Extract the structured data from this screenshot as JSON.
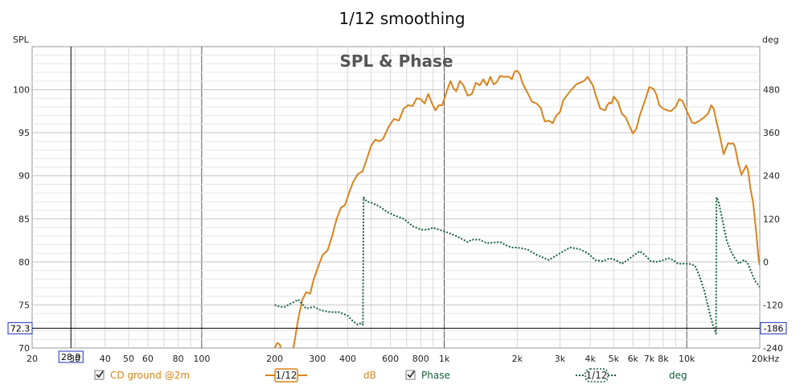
{
  "chart_data": {
    "type": "line",
    "title": "1/12 smoothing",
    "subtitle": "SPL & Phase",
    "ylabel": "SPL",
    "y2label": "deg",
    "xscale": "log",
    "xlim": [
      20,
      20000
    ],
    "ylim": [
      70,
      105
    ],
    "y2lim": [
      -240,
      600
    ],
    "grid": true,
    "x_ticks": [
      {
        "v": 20,
        "label": "20"
      },
      {
        "v": 30,
        "label": "30"
      },
      {
        "v": 40,
        "label": "40"
      },
      {
        "v": 50,
        "label": "50"
      },
      {
        "v": 60,
        "label": "60"
      },
      {
        "v": 80,
        "label": "80"
      },
      {
        "v": 100,
        "label": "100"
      },
      {
        "v": 200,
        "label": "200"
      },
      {
        "v": 300,
        "label": "300"
      },
      {
        "v": 400,
        "label": "400"
      },
      {
        "v": 600,
        "label": "600"
      },
      {
        "v": 800,
        "label": "800"
      },
      {
        "v": 1000,
        "label": "1k"
      },
      {
        "v": 2000,
        "label": "2k"
      },
      {
        "v": 3000,
        "label": "3k"
      },
      {
        "v": 4000,
        "label": "4k"
      },
      {
        "v": 5000,
        "label": "5k"
      },
      {
        "v": 6000,
        "label": "6k"
      },
      {
        "v": 7000,
        "label": "7k"
      },
      {
        "v": 8000,
        "label": "8k"
      },
      {
        "v": 10000,
        "label": "10k"
      },
      {
        "v": 20000,
        "label": "20kHz"
      }
    ],
    "y_ticks": [
      {
        "v": 70,
        "label": "70"
      },
      {
        "v": 75,
        "label": "75"
      },
      {
        "v": 80,
        "label": "80"
      },
      {
        "v": 85,
        "label": "85"
      },
      {
        "v": 90,
        "label": "90"
      },
      {
        "v": 95,
        "label": "95"
      },
      {
        "v": 100,
        "label": "100"
      }
    ],
    "y2_ticks": [
      {
        "v": -240,
        "label": "-240"
      },
      {
        "v": -120,
        "label": "-120"
      },
      {
        "v": 0,
        "label": "0"
      },
      {
        "v": 120,
        "label": "120"
      },
      {
        "v": 240,
        "label": "240"
      },
      {
        "v": 360,
        "label": "360"
      },
      {
        "v": 480,
        "label": "480"
      }
    ],
    "cursor": {
      "x": 28.9,
      "x_label": "28.9",
      "y": 72.3,
      "y_label": "72.3",
      "y2_label": "-186"
    },
    "series": [
      {
        "name": "CD ground @2m",
        "axis": "left",
        "unit": "dB",
        "color": "#d8841c",
        "style": "solid",
        "points": [
          [
            200,
            70.0
          ],
          [
            205,
            70.6
          ],
          [
            210,
            70.4
          ],
          [
            215,
            69.3
          ],
          [
            220,
            68.6
          ],
          [
            230,
            68.6
          ],
          [
            240,
            70.3
          ],
          [
            250,
            73.4
          ],
          [
            260,
            75.6
          ],
          [
            270,
            76.5
          ],
          [
            280,
            76.3
          ],
          [
            290,
            78.0
          ],
          [
            300,
            79.2
          ],
          [
            315,
            80.8
          ],
          [
            330,
            81.3
          ],
          [
            345,
            83.0
          ],
          [
            360,
            85.0
          ],
          [
            375,
            86.3
          ],
          [
            390,
            86.6
          ],
          [
            405,
            88.0
          ],
          [
            420,
            89.2
          ],
          [
            440,
            90.2
          ],
          [
            460,
            90.5
          ],
          [
            480,
            92.0
          ],
          [
            500,
            93.5
          ],
          [
            520,
            94.2
          ],
          [
            540,
            94.0
          ],
          [
            560,
            94.3
          ],
          [
            590,
            95.7
          ],
          [
            620,
            96.6
          ],
          [
            650,
            96.4
          ],
          [
            680,
            97.8
          ],
          [
            710,
            98.2
          ],
          [
            740,
            98.1
          ],
          [
            770,
            99.0
          ],
          [
            800,
            98.9
          ],
          [
            830,
            98.4
          ],
          [
            860,
            99.5
          ],
          [
            890,
            98.4
          ],
          [
            920,
            97.6
          ],
          [
            950,
            98.2
          ],
          [
            980,
            98.2
          ],
          [
            1000,
            98.9
          ],
          [
            1030,
            100.0
          ],
          [
            1060,
            101.0
          ],
          [
            1090,
            100.2
          ],
          [
            1120,
            99.8
          ],
          [
            1160,
            101.0
          ],
          [
            1200,
            100.5
          ],
          [
            1250,
            99.3
          ],
          [
            1300,
            99.5
          ],
          [
            1350,
            100.8
          ],
          [
            1400,
            100.5
          ],
          [
            1450,
            101.2
          ],
          [
            1500,
            100.5
          ],
          [
            1550,
            101.5
          ],
          [
            1600,
            100.6
          ],
          [
            1650,
            100.9
          ],
          [
            1700,
            101.6
          ],
          [
            1750,
            101.5
          ],
          [
            1800,
            101.5
          ],
          [
            1850,
            101.5
          ],
          [
            1900,
            101.2
          ],
          [
            1950,
            102.1
          ],
          [
            2000,
            102.2
          ],
          [
            2050,
            101.8
          ],
          [
            2100,
            100.8
          ],
          [
            2200,
            99.7
          ],
          [
            2300,
            98.6
          ],
          [
            2400,
            98.4
          ],
          [
            2500,
            97.9
          ],
          [
            2550,
            97.0
          ],
          [
            2600,
            96.3
          ],
          [
            2700,
            96.4
          ],
          [
            2800,
            96.1
          ],
          [
            2900,
            97.0
          ],
          [
            3000,
            97.4
          ],
          [
            3100,
            98.8
          ],
          [
            3300,
            99.8
          ],
          [
            3500,
            100.6
          ],
          [
            3700,
            100.9
          ],
          [
            3800,
            101.1
          ],
          [
            3900,
            101.5
          ],
          [
            4000,
            101.0
          ],
          [
            4100,
            100.5
          ],
          [
            4200,
            99.5
          ],
          [
            4400,
            97.8
          ],
          [
            4600,
            97.6
          ],
          [
            4700,
            98.2
          ],
          [
            4800,
            98.5
          ],
          [
            4900,
            98.4
          ],
          [
            5000,
            99.2
          ],
          [
            5200,
            98.6
          ],
          [
            5400,
            97.2
          ],
          [
            5600,
            96.8
          ],
          [
            5800,
            95.8
          ],
          [
            6000,
            94.9
          ],
          [
            6200,
            95.5
          ],
          [
            6400,
            97.0
          ],
          [
            6700,
            98.6
          ],
          [
            7000,
            100.3
          ],
          [
            7300,
            100.1
          ],
          [
            7500,
            99.4
          ],
          [
            7700,
            98.2
          ],
          [
            8000,
            97.8
          ],
          [
            8300,
            97.6
          ],
          [
            8600,
            97.5
          ],
          [
            9000,
            98.0
          ],
          [
            9300,
            98.9
          ],
          [
            9600,
            98.7
          ],
          [
            9900,
            97.8
          ],
          [
            10200,
            97.0
          ],
          [
            10500,
            96.2
          ],
          [
            10800,
            96.1
          ],
          [
            11300,
            96.4
          ],
          [
            11800,
            96.8
          ],
          [
            12300,
            97.3
          ],
          [
            12600,
            98.2
          ],
          [
            12900,
            97.8
          ],
          [
            13200,
            96.5
          ],
          [
            13600,
            95.0
          ],
          [
            14200,
            92.5
          ],
          [
            14800,
            93.8
          ],
          [
            15200,
            93.7
          ],
          [
            15500,
            93.8
          ],
          [
            15800,
            93.4
          ],
          [
            16300,
            91.5
          ],
          [
            16800,
            90.1
          ],
          [
            17300,
            90.8
          ],
          [
            17600,
            91.2
          ],
          [
            17900,
            90.6
          ],
          [
            18300,
            88.5
          ],
          [
            18800,
            86.8
          ],
          [
            19400,
            83.0
          ],
          [
            19800,
            80.2
          ],
          [
            20000,
            79.6
          ]
        ]
      },
      {
        "name": "Phase",
        "axis": "right",
        "unit": "deg",
        "color": "#15603a",
        "style": "dotted",
        "points": [
          [
            200,
            -120
          ],
          [
            210,
            -125
          ],
          [
            220,
            -125
          ],
          [
            230,
            -118
          ],
          [
            240,
            -112
          ],
          [
            250,
            -105
          ],
          [
            260,
            -118
          ],
          [
            270,
            -130
          ],
          [
            290,
            -125
          ],
          [
            310,
            -135
          ],
          [
            340,
            -140
          ],
          [
            370,
            -140
          ],
          [
            400,
            -150
          ],
          [
            420,
            -165
          ],
          [
            440,
            -175
          ],
          [
            455,
            -170
          ],
          [
            462,
            -175
          ],
          [
            465,
            180
          ],
          [
            480,
            168
          ],
          [
            500,
            165
          ],
          [
            540,
            155
          ],
          [
            580,
            140
          ],
          [
            620,
            130
          ],
          [
            680,
            120
          ],
          [
            740,
            100
          ],
          [
            800,
            90
          ],
          [
            850,
            90
          ],
          [
            900,
            95
          ],
          [
            950,
            90
          ],
          [
            1000,
            85
          ],
          [
            1100,
            75
          ],
          [
            1200,
            62
          ],
          [
            1250,
            55
          ],
          [
            1300,
            62
          ],
          [
            1400,
            62
          ],
          [
            1500,
            52
          ],
          [
            1600,
            54
          ],
          [
            1700,
            56
          ],
          [
            1800,
            46
          ],
          [
            1900,
            40
          ],
          [
            2000,
            40
          ],
          [
            2200,
            35
          ],
          [
            2400,
            20
          ],
          [
            2600,
            10
          ],
          [
            2700,
            5
          ],
          [
            2900,
            18
          ],
          [
            3100,
            30
          ],
          [
            3300,
            40
          ],
          [
            3600,
            36
          ],
          [
            3900,
            25
          ],
          [
            4200,
            5
          ],
          [
            4500,
            2
          ],
          [
            4800,
            10
          ],
          [
            5100,
            5
          ],
          [
            5400,
            -5
          ],
          [
            5700,
            5
          ],
          [
            6100,
            20
          ],
          [
            6400,
            30
          ],
          [
            6700,
            20
          ],
          [
            7100,
            2
          ],
          [
            7600,
            0
          ],
          [
            8000,
            5
          ],
          [
            8400,
            10
          ],
          [
            8800,
            5
          ],
          [
            9200,
            -5
          ],
          [
            9700,
            -5
          ],
          [
            10200,
            -5
          ],
          [
            10800,
            -10
          ],
          [
            11300,
            -40
          ],
          [
            11800,
            -80
          ],
          [
            12300,
            -130
          ],
          [
            12800,
            -175
          ],
          [
            13200,
            -200
          ],
          [
            13250,
            180
          ],
          [
            13500,
            170
          ],
          [
            14000,
            120
          ],
          [
            14600,
            60
          ],
          [
            15200,
            30
          ],
          [
            15800,
            10
          ],
          [
            16400,
            -5
          ],
          [
            17200,
            5
          ],
          [
            17800,
            -2
          ],
          [
            18500,
            -30
          ],
          [
            19200,
            -55
          ],
          [
            20000,
            -70
          ]
        ]
      }
    ],
    "legend": {
      "placement": "bottom",
      "items": [
        {
          "label": "CD ground @2m",
          "checked": true,
          "smoothing": "1/12",
          "unit": "dB"
        },
        {
          "label": "Phase",
          "checked": true,
          "smoothing": "1/12",
          "unit": "deg"
        }
      ]
    }
  }
}
